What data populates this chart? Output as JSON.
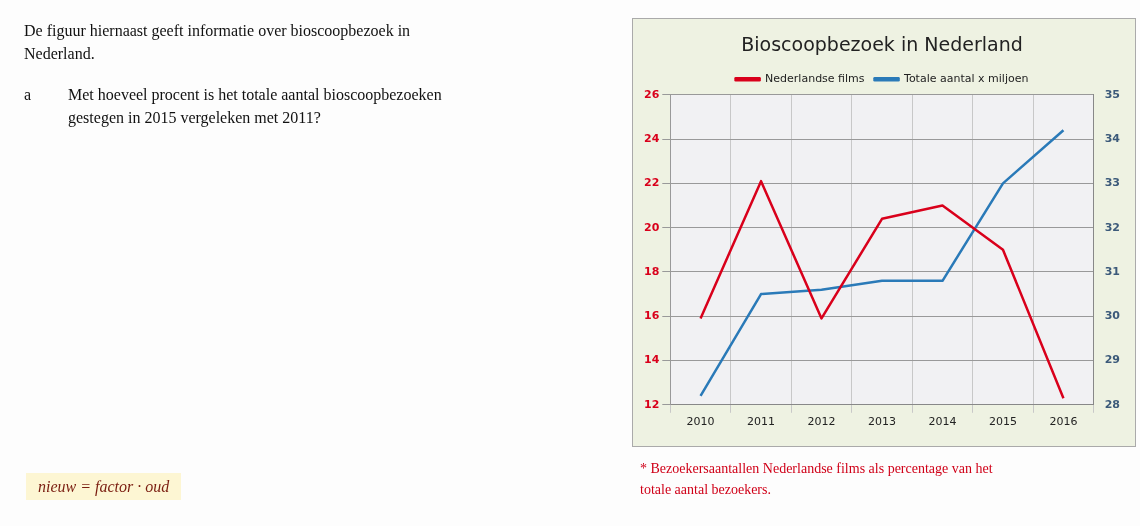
{
  "chart_data": {
    "type": "line",
    "title": "Bioscoopbezoek in Nederland",
    "categories": [
      "2010",
      "2011",
      "2012",
      "2013",
      "2014",
      "2015",
      "2016"
    ],
    "series": [
      {
        "name": "Nederlandse films",
        "color": "#d9001b",
        "values": [
          15.9,
          22.1,
          15.9,
          20.4,
          21.0,
          19.0,
          12.3
        ]
      },
      {
        "name": "Totale aantal x miljoen",
        "color": "#2a7ab8",
        "axis": "y2",
        "values": [
          28.2,
          30.5,
          30.6,
          30.8,
          30.8,
          33.0,
          34.2
        ]
      }
    ],
    "ylim": [
      12,
      26
    ],
    "yticks": [
      12,
      14,
      16,
      18,
      20,
      22,
      24,
      26
    ],
    "y2lim": [
      28,
      35
    ],
    "y2ticks": [
      28,
      29,
      30,
      31,
      32,
      33,
      34,
      35
    ],
    "grid": true,
    "legend": "top",
    "marker": "none",
    "line_style": "solid",
    "annotations": [
      "De figuur hiernaast geeft informatie over bioscoopbezoek in Nederland.",
      "a",
      "Met hoeveel procent is het totale aantal bioscoopbezoeken gestegen in 2015 vergeleken met 2011?",
      "nieuw = factor · oud",
      "* Bezoekersaantallen Nederlandse films als percentage van het totale aantal bezoekers."
    ]
  }
}
